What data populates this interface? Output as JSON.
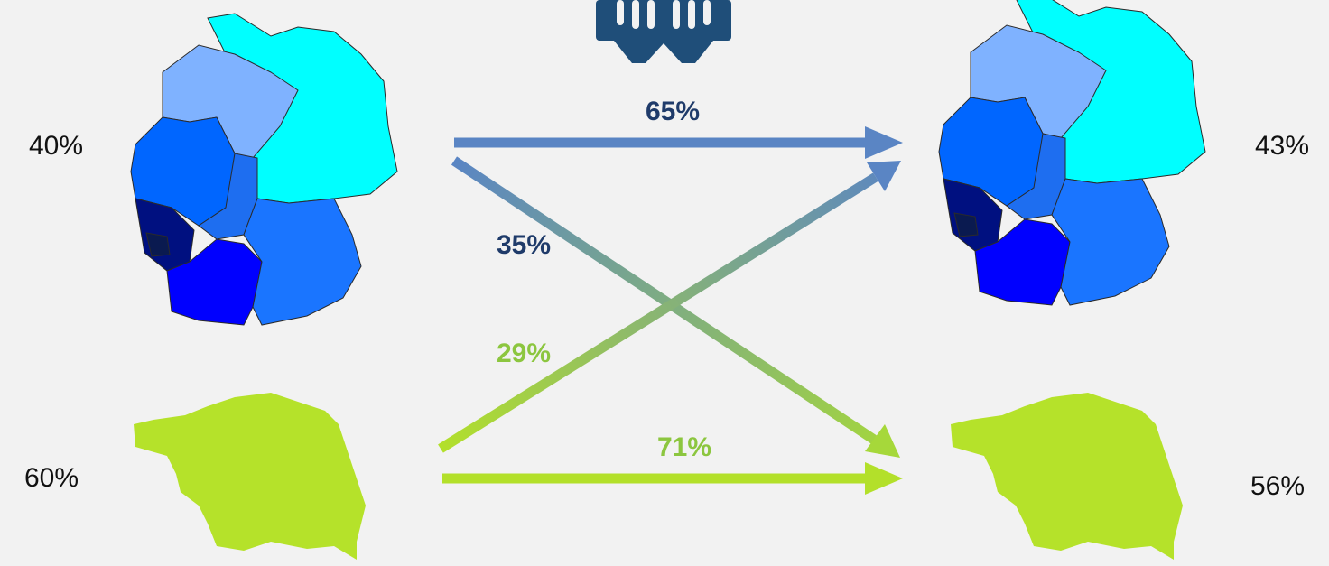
{
  "left": [
    {
      "label": "40%"
    },
    {
      "label": "60%"
    }
  ],
  "right": [
    {
      "label": "43%"
    },
    {
      "label": "56%"
    }
  ],
  "flows": [
    {
      "label": "65%"
    },
    {
      "label": "35%"
    },
    {
      "label": "29%"
    },
    {
      "label": "71%"
    }
  ]
}
